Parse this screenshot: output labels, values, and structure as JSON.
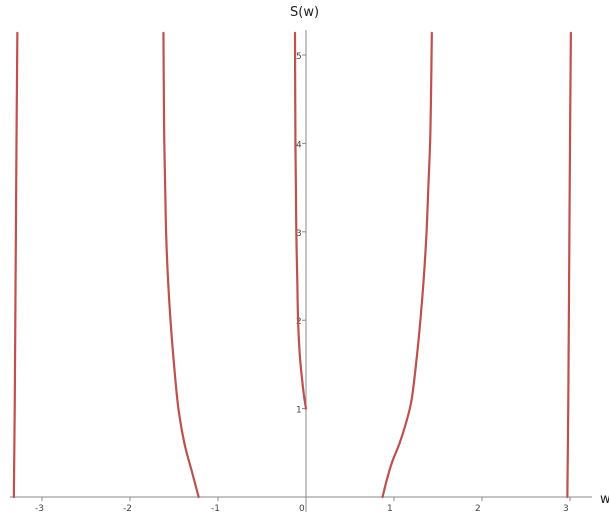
{
  "chart_data": {
    "type": "line",
    "xlabel": "w",
    "ylabel": "S(w)",
    "xlim": [
      -3.35,
      3.35
    ],
    "ylim": [
      0,
      5.25
    ],
    "grid": false,
    "legend": "none",
    "line_color": "#c0504d",
    "x_ticks": [
      -3,
      -2,
      -1,
      0,
      1,
      2,
      3
    ],
    "y_ticks": [
      1,
      2,
      3,
      4,
      5
    ],
    "series": [
      {
        "points": [
          [
            -3.32,
            0
          ],
          [
            -3.31,
            1
          ],
          [
            -3.3,
            2.5
          ],
          [
            -3.29,
            4
          ],
          [
            -3.28,
            5.25
          ]
        ]
      },
      {
        "points": [
          [
            -1.22,
            0
          ],
          [
            -1.3,
            0.3
          ],
          [
            -1.38,
            0.6
          ],
          [
            -1.45,
            1.0
          ],
          [
            -1.5,
            1.5
          ],
          [
            -1.54,
            2.0
          ],
          [
            -1.57,
            2.5
          ],
          [
            -1.59,
            3.0
          ],
          [
            -1.6,
            3.5
          ],
          [
            -1.61,
            4.0
          ],
          [
            -1.615,
            4.5
          ],
          [
            -1.62,
            5.25
          ]
        ]
      },
      {
        "points": [
          [
            0.0,
            1.0
          ],
          [
            -0.03,
            1.2
          ],
          [
            -0.07,
            1.6
          ],
          [
            -0.09,
            2.0
          ],
          [
            -0.1,
            2.5
          ],
          [
            -0.11,
            3.0
          ],
          [
            -0.12,
            4.0
          ],
          [
            -0.125,
            5.25
          ]
        ]
      },
      {
        "points": [
          [
            0.87,
            0
          ],
          [
            0.92,
            0.2
          ],
          [
            0.98,
            0.4
          ],
          [
            1.06,
            0.6
          ],
          [
            1.14,
            0.85
          ],
          [
            1.2,
            1.1
          ],
          [
            1.25,
            1.5
          ],
          [
            1.3,
            2.0
          ],
          [
            1.34,
            2.5
          ],
          [
            1.37,
            3.0
          ],
          [
            1.39,
            3.5
          ],
          [
            1.41,
            4.0
          ],
          [
            1.42,
            4.5
          ],
          [
            1.43,
            5.25
          ]
        ]
      },
      {
        "points": [
          [
            2.97,
            0
          ],
          [
            2.98,
            1
          ],
          [
            2.99,
            2.5
          ],
          [
            3.0,
            4
          ],
          [
            3.01,
            5.25
          ]
        ]
      }
    ]
  }
}
